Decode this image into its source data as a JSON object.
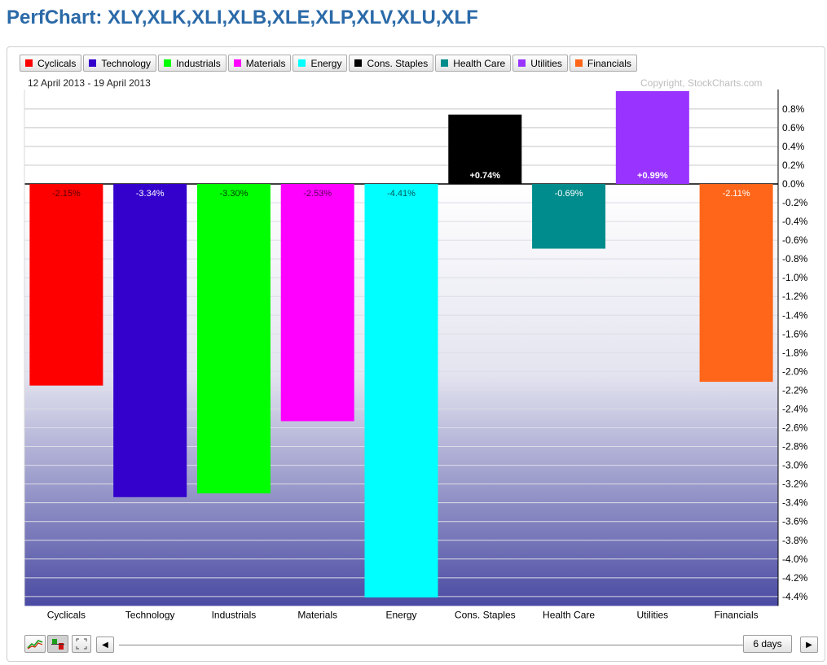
{
  "page": {
    "title": "PerfChart: XLY,XLK,XLI,XLB,XLE,XLP,XLV,XLU,XLF"
  },
  "header": {
    "date_range": "12 April 2013 - 19 April 2013",
    "copyright": "Copyright, StockCharts.com"
  },
  "legend": [
    {
      "label": "Cyclicals",
      "color": "#ff0000"
    },
    {
      "label": "Technology",
      "color": "#3300cc"
    },
    {
      "label": "Industrials",
      "color": "#00ff00"
    },
    {
      "label": "Materials",
      "color": "#ff00ff"
    },
    {
      "label": "Energy",
      "color": "#00ffff"
    },
    {
      "label": "Cons. Staples",
      "color": "#000000"
    },
    {
      "label": "Health Care",
      "color": "#008c8c"
    },
    {
      "label": "Utilities",
      "color": "#9933ff"
    },
    {
      "label": "Financials",
      "color": "#ff6619"
    }
  ],
  "controls": {
    "period_label": "6 days",
    "icons": [
      "line-chart-icon",
      "histogram-icon",
      "fullscreen-icon",
      "scroll-left-icon",
      "scroll-right-icon"
    ]
  },
  "chart_data": {
    "type": "bar",
    "categories": [
      "Cyclicals",
      "Technology",
      "Industrials",
      "Materials",
      "Energy",
      "Cons. Staples",
      "Health Care",
      "Utilities",
      "Financials"
    ],
    "values": [
      -2.15,
      -3.34,
      -3.3,
      -2.53,
      -4.41,
      0.74,
      -0.69,
      0.99,
      -2.11
    ],
    "data_labels": [
      "-2.15%",
      "-3.34%",
      "-3.30%",
      "-2.53%",
      "-4.41%",
      "+0.74%",
      "-0.69%",
      "+0.99%",
      "-2.11%"
    ],
    "colors": [
      "#ff0000",
      "#3300cc",
      "#00ff00",
      "#ff00ff",
      "#00ffff",
      "#000000",
      "#008c8c",
      "#9933ff",
      "#ff6619"
    ],
    "label_colors": [
      "#5a0000",
      "#ffffff",
      "#004000",
      "#5a005a",
      "#005a5a",
      "#ffffff",
      "#ffffff",
      "#ffffff",
      "#ffffff"
    ],
    "yticks": [
      "0.8%",
      "0.6%",
      "0.4%",
      "0.2%",
      "0.0%",
      "-0.2%",
      "-0.4%",
      "-0.6%",
      "-0.8%",
      "-1.0%",
      "-1.2%",
      "-1.4%",
      "-1.6%",
      "-1.8%",
      "-2.0%",
      "-2.2%",
      "-2.4%",
      "-2.6%",
      "-2.8%",
      "-3.0%",
      "-3.2%",
      "-3.4%",
      "-3.6%",
      "-3.8%",
      "-4.0%",
      "-4.2%",
      "-4.4%"
    ],
    "ylim": [
      -4.5,
      0.99
    ],
    "grid": true,
    "legend_position": "top"
  }
}
